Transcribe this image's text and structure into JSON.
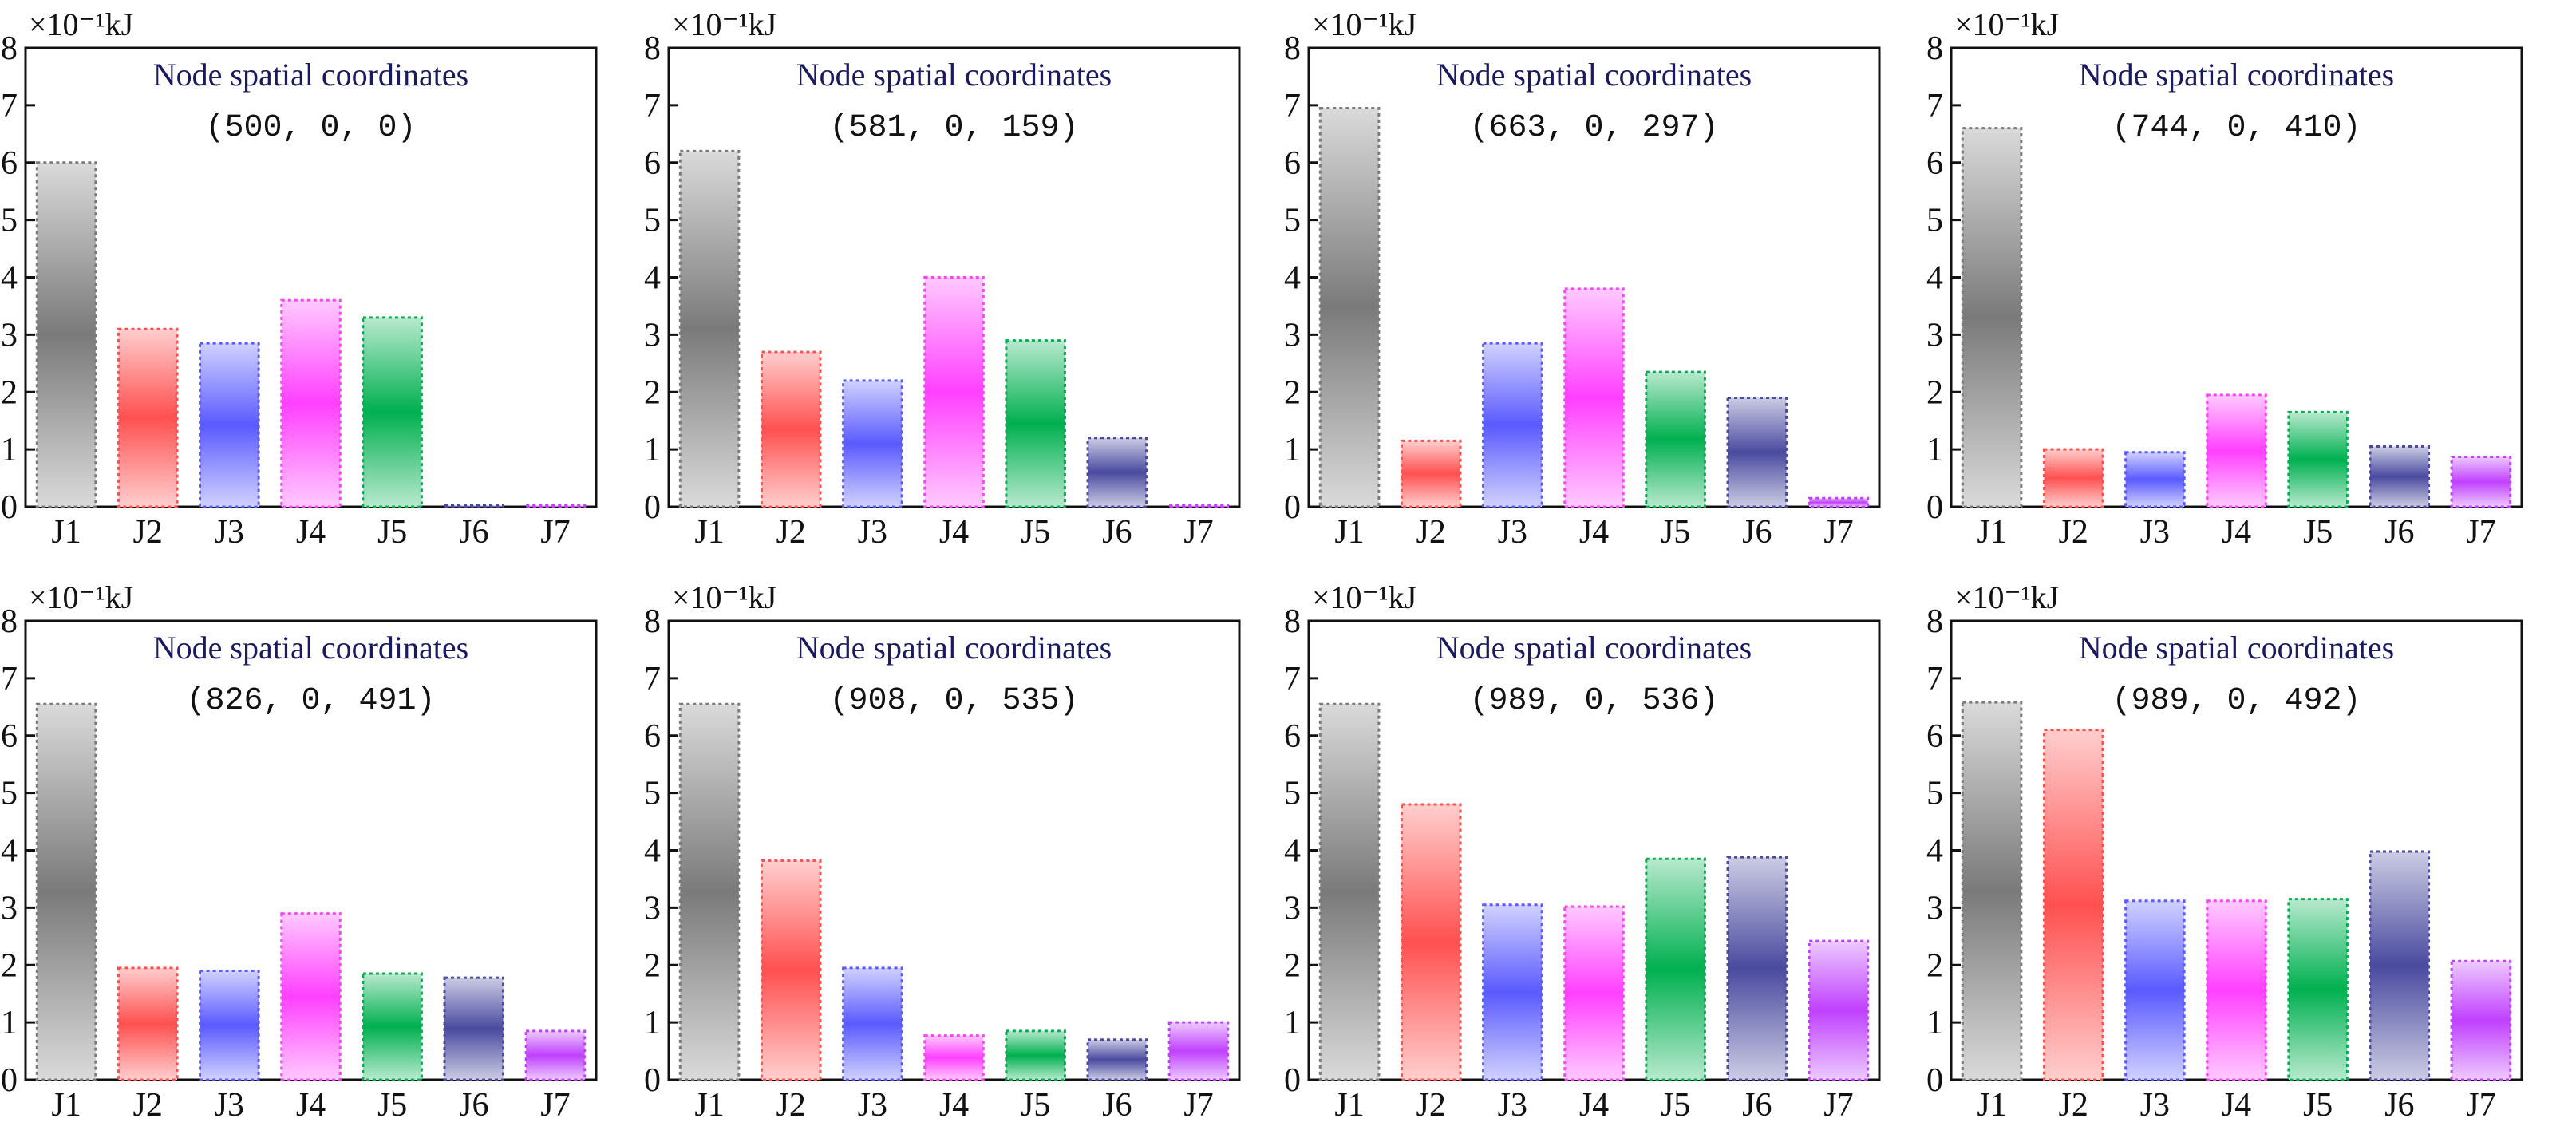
{
  "chart_data": {
    "type": "bar",
    "categories": [
      "J1",
      "J2",
      "J3",
      "J4",
      "J5",
      "J6",
      "J7"
    ],
    "unit": "×10⁻¹kJ",
    "ylim": [
      0,
      8
    ],
    "yticks": [
      "0",
      "1",
      "2",
      "3",
      "4",
      "5",
      "6",
      "7",
      "8"
    ],
    "title": "Node spatial coordinates",
    "colors": {
      "J1": "#7a7a7a",
      "J2": "#ff5050",
      "J3": "#5a5aff",
      "J4": "#ff40ff",
      "J5": "#00b050",
      "J6": "#4a4aa0",
      "J7": "#c040ff"
    },
    "panels": [
      {
        "coordinates": "(500, 0, 0)",
        "values": [
          6.0,
          3.1,
          2.85,
          3.6,
          3.3,
          0.02,
          0.02
        ]
      },
      {
        "coordinates": "(581, 0, 159)",
        "values": [
          6.2,
          2.7,
          2.2,
          4.0,
          2.9,
          1.2,
          0.02
        ]
      },
      {
        "coordinates": "(663, 0, 297)",
        "values": [
          6.95,
          1.15,
          2.85,
          3.8,
          2.35,
          1.9,
          0.15
        ]
      },
      {
        "coordinates": "(744, 0, 410)",
        "values": [
          6.6,
          1.0,
          0.95,
          1.95,
          1.65,
          1.05,
          0.87
        ]
      },
      {
        "coordinates": "(826, 0, 491)",
        "values": [
          6.55,
          1.95,
          1.9,
          2.9,
          1.85,
          1.78,
          0.85
        ]
      },
      {
        "coordinates": "(908, 0, 535)",
        "values": [
          6.55,
          3.82,
          1.95,
          0.77,
          0.85,
          0.7,
          1.0
        ]
      },
      {
        "coordinates": "(989, 0, 536)",
        "values": [
          6.55,
          4.8,
          3.05,
          3.02,
          3.85,
          3.88,
          2.42
        ]
      },
      {
        "coordinates": "(989, 0, 492)",
        "values": [
          6.58,
          6.1,
          3.12,
          3.12,
          3.15,
          3.98,
          2.07
        ]
      }
    ]
  }
}
